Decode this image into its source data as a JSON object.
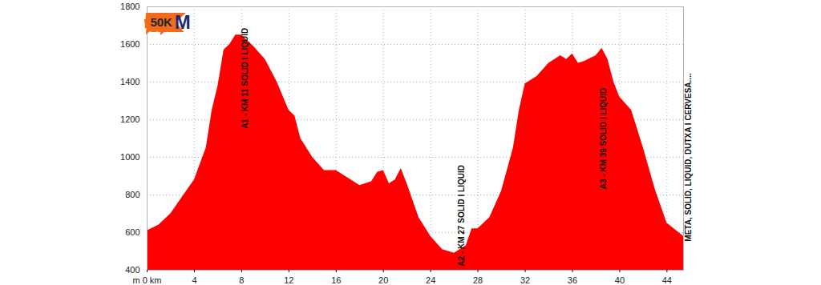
{
  "chart_data": {
    "type": "area",
    "x": [
      0,
      1,
      2,
      3,
      4,
      5,
      5.5,
      6,
      6.5,
      7,
      7.5,
      8,
      8.5,
      9,
      10,
      11,
      12,
      12.5,
      13,
      14,
      15,
      16,
      17,
      18,
      19,
      19.5,
      20,
      20.5,
      21,
      21.5,
      22,
      23,
      24,
      25,
      26,
      27,
      27.5,
      28,
      29,
      30,
      31,
      31.5,
      32,
      33,
      34,
      35,
      35.5,
      36,
      36.5,
      37,
      38,
      38.5,
      39,
      39.5,
      40,
      41,
      42,
      43,
      44,
      45,
      45.4
    ],
    "values": [
      610,
      640,
      700,
      790,
      880,
      1050,
      1250,
      1380,
      1570,
      1600,
      1650,
      1650,
      1620,
      1590,
      1520,
      1400,
      1250,
      1220,
      1100,
      1000,
      930,
      930,
      890,
      850,
      870,
      920,
      930,
      860,
      880,
      940,
      860,
      680,
      580,
      510,
      490,
      530,
      620,
      620,
      680,
      820,
      1050,
      1250,
      1390,
      1430,
      1500,
      1540,
      1520,
      1550,
      1500,
      1510,
      1540,
      1580,
      1520,
      1400,
      1320,
      1250,
      1050,
      830,
      650,
      600,
      580
    ],
    "color": "#ff0000",
    "xlim": [
      0,
      45.4
    ],
    "ylim": [
      400,
      1800
    ],
    "xticks": [
      {
        "value": 0,
        "label": "m 0 km"
      },
      4,
      8,
      12,
      16,
      20,
      24,
      28,
      32,
      36,
      40,
      44
    ],
    "yticks": [
      400,
      600,
      800,
      1000,
      1200,
      1400,
      1600,
      1800
    ],
    "grid": true,
    "annotations": [
      {
        "text": "50K",
        "x": 1.2,
        "y": 1715
      },
      {
        "text": "M",
        "x": 3.0,
        "y": 1715
      },
      {
        "text": "A1 - KM 11 SOLID I LIQUID",
        "x": 8.3,
        "y": 1420
      },
      {
        "text": "A2 - KM 27 SOLID I LIQUID",
        "x": 26.6,
        "y": 690
      },
      {
        "text": "A3 - KM 39 SOLID I LIQUID",
        "x": 38.6,
        "y": 1100
      },
      {
        "text": "META, SOLID, LIQUID, DUTXA I CERVESA....",
        "x": 45.8,
        "y": 1000
      }
    ]
  }
}
